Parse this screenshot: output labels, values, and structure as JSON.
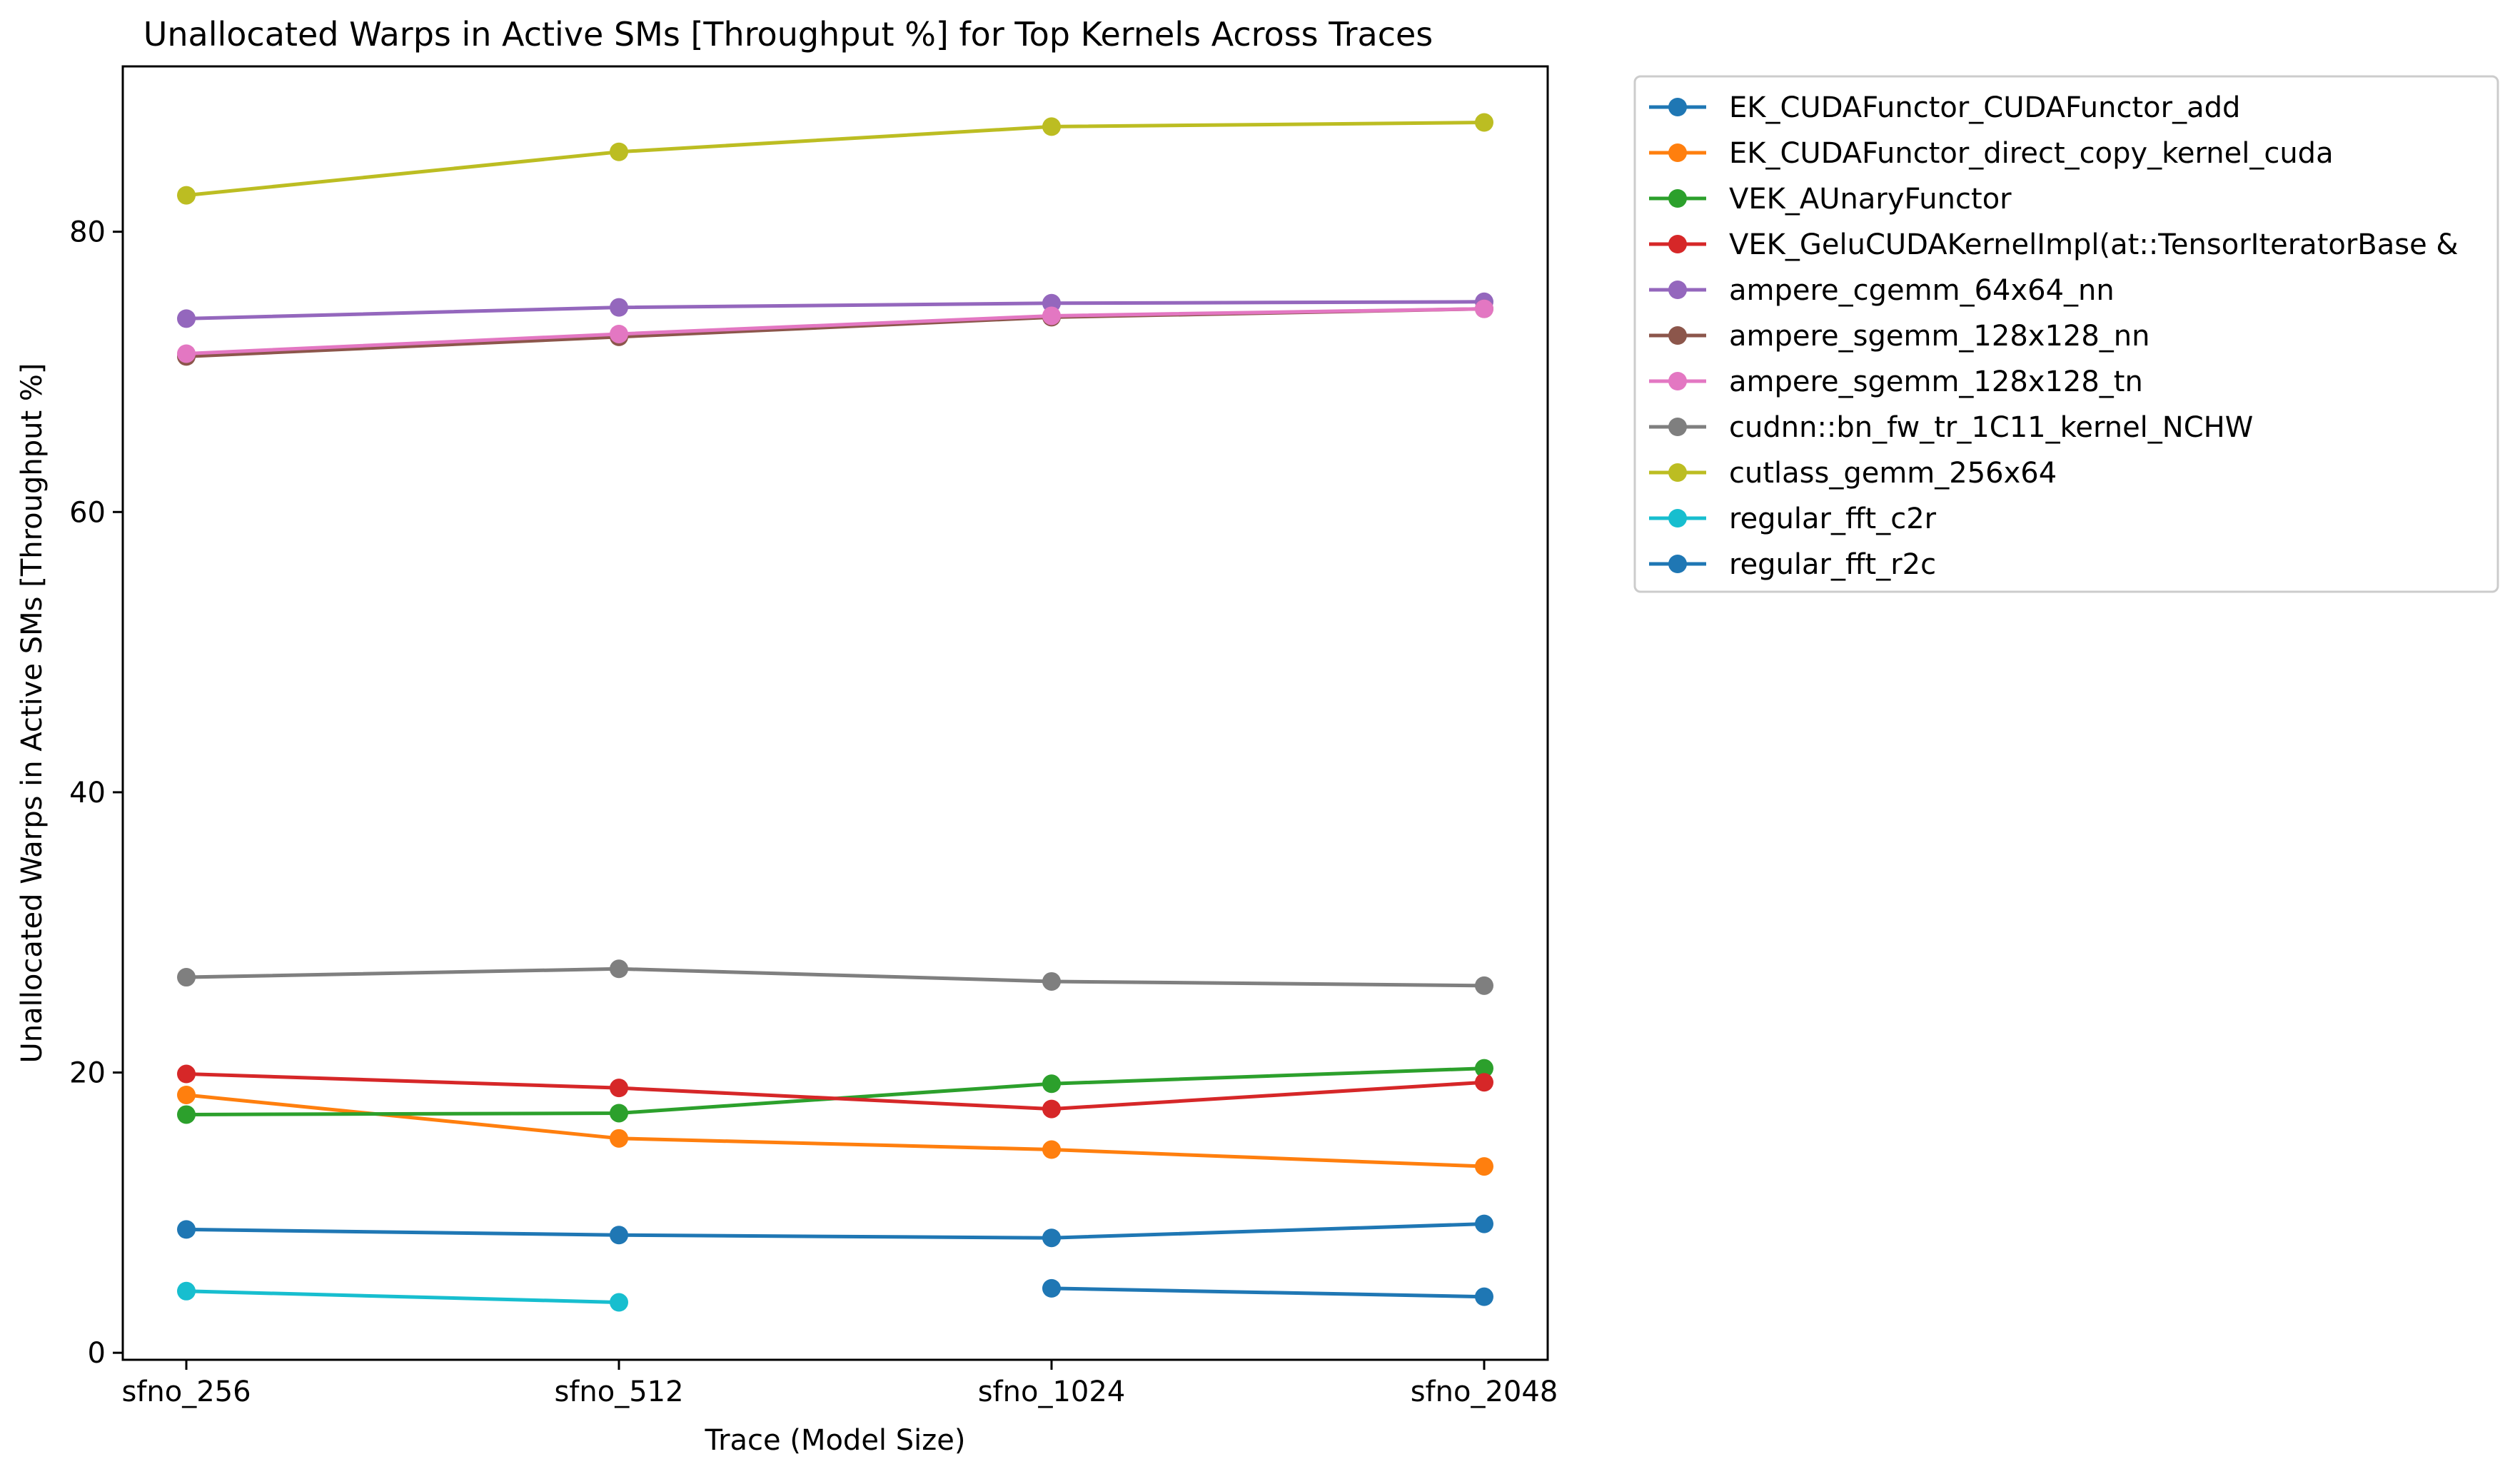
{
  "chart_data": {
    "type": "line",
    "title": "Unallocated Warps in Active SMs [Throughput %] for Top Kernels Across Traces",
    "xlabel": "Trace (Model Size)",
    "ylabel": "Unallocated Warps in Active SMs [Throughput %]",
    "categories": [
      "sfno_256",
      "sfno_512",
      "sfno_1024",
      "sfno_2048"
    ],
    "ylim": [
      -0.5,
      91.8
    ],
    "yticks": [
      0,
      20,
      40,
      60,
      80
    ],
    "grid": false,
    "legend_position": "outside-right",
    "series": [
      {
        "name": "EK_CUDAFunctor_CUDAFunctor_add",
        "color": "#1f77b4",
        "values": [
          8.8,
          8.4,
          8.2,
          9.2
        ]
      },
      {
        "name": "EK_CUDAFunctor_direct_copy_kernel_cuda",
        "color": "#ff7f0e",
        "values": [
          18.4,
          15.3,
          14.5,
          13.3
        ]
      },
      {
        "name": "VEK_AUnaryFunctor",
        "color": "#2ca02c",
        "values": [
          17.0,
          17.1,
          19.2,
          20.3
        ]
      },
      {
        "name": "VEK_GeluCUDAKernelImpl(at::TensorIteratorBase &",
        "color": "#d62728",
        "values": [
          19.9,
          18.9,
          17.4,
          19.3
        ]
      },
      {
        "name": "ampere_cgemm_64x64_nn",
        "color": "#9467bd",
        "values": [
          73.8,
          74.6,
          74.9,
          75.0
        ]
      },
      {
        "name": "ampere_sgemm_128x128_nn",
        "color": "#8c564b",
        "values": [
          71.1,
          72.5,
          73.9,
          74.5
        ]
      },
      {
        "name": "ampere_sgemm_128x128_tn",
        "color": "#e377c2",
        "values": [
          71.3,
          72.7,
          74.0,
          74.5
        ]
      },
      {
        "name": "cudnn::bn_fw_tr_1C11_kernel_NCHW",
        "color": "#7f7f7f",
        "values": [
          26.8,
          27.4,
          26.5,
          26.2
        ]
      },
      {
        "name": "cutlass_gemm_256x64",
        "color": "#bcbd22",
        "values": [
          82.6,
          85.7,
          87.5,
          87.8
        ]
      },
      {
        "name": "regular_fft_c2r",
        "color": "#17becf",
        "values": [
          4.4,
          3.6,
          null,
          null
        ]
      },
      {
        "name": "regular_fft_r2c",
        "color": "#1f77b4",
        "values": [
          null,
          null,
          4.6,
          4.0
        ]
      }
    ]
  }
}
